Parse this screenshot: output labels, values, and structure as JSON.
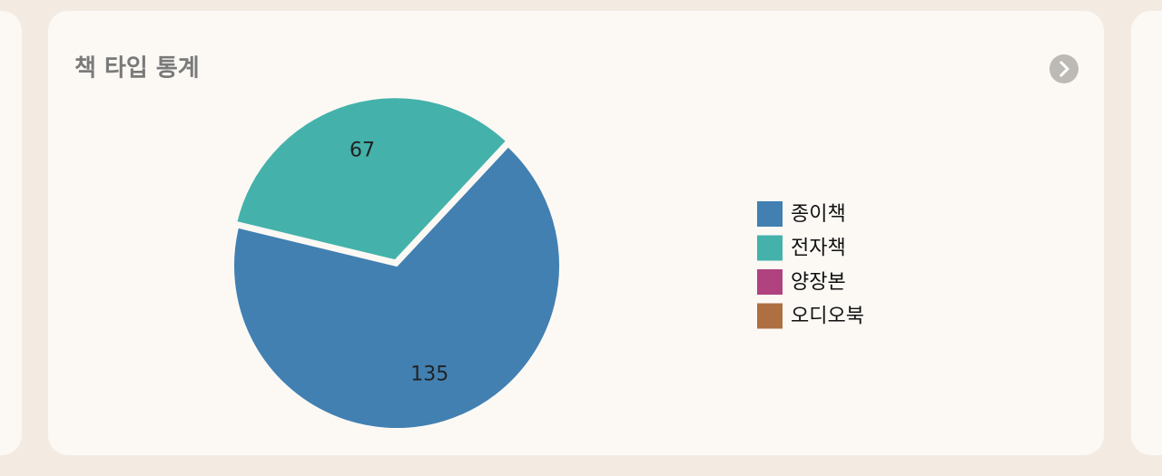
{
  "chart_data": {
    "type": "pie",
    "title": "책 타입 통계",
    "categories": [
      "종이책",
      "전자책",
      "양장본",
      "오디오북"
    ],
    "values": [
      135,
      67,
      0,
      0
    ],
    "colors": [
      "#4280b2",
      "#44b2ab",
      "#b04280",
      "#ae7040"
    ],
    "legend": "right"
  }
}
